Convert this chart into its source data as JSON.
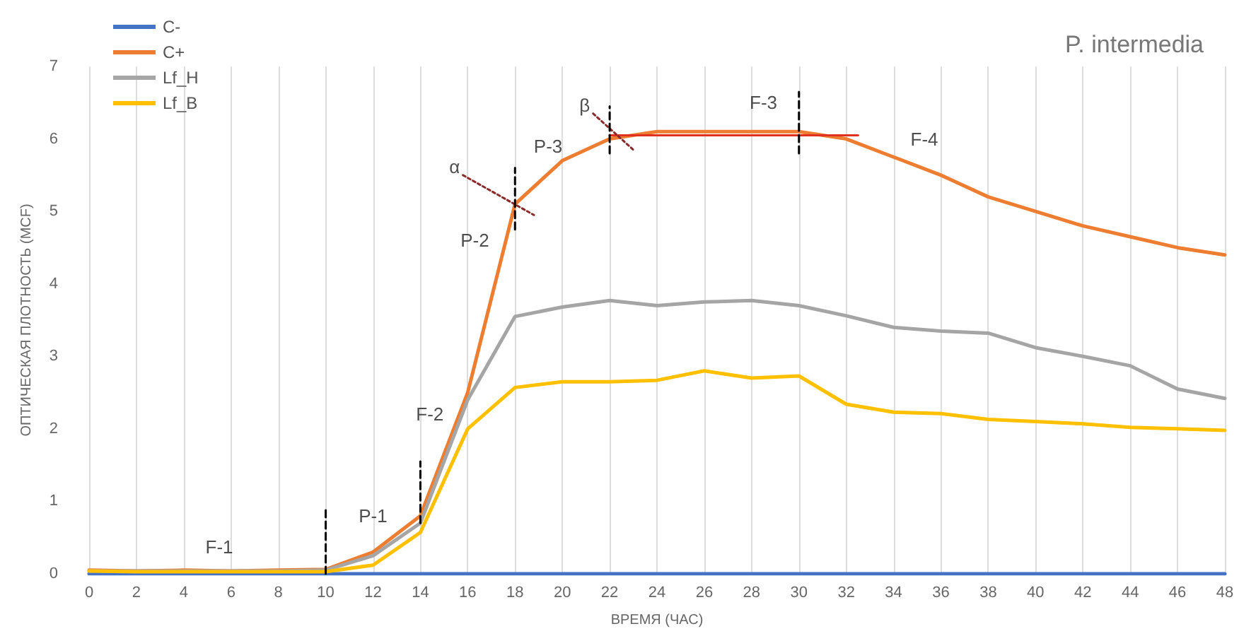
{
  "chart_data": {
    "type": "line",
    "title": "P. intermedia",
    "xlabel": "ВРЕМЯ (ЧАС)",
    "ylabel": "ОПТИЧЕСКАЯ ПЛОТНОСТЬ (MCF)",
    "x": [
      0,
      2,
      4,
      6,
      8,
      10,
      12,
      14,
      16,
      18,
      20,
      22,
      24,
      26,
      28,
      30,
      32,
      34,
      36,
      38,
      40,
      42,
      44,
      46,
      48
    ],
    "xlim": [
      0,
      48
    ],
    "xticks": [
      0,
      2,
      4,
      6,
      8,
      10,
      12,
      14,
      16,
      18,
      20,
      22,
      24,
      26,
      28,
      30,
      32,
      34,
      36,
      38,
      40,
      42,
      44,
      46,
      48
    ],
    "ylim": [
      0,
      7
    ],
    "yticks": [
      0,
      1,
      2,
      3,
      4,
      5,
      6,
      7
    ],
    "grid": "x",
    "legend": "top left",
    "marker": "none",
    "series": [
      {
        "name": "C-",
        "color": "#4472c4",
        "values": [
          0,
          0,
          0,
          0,
          0,
          0,
          0,
          0,
          0,
          0,
          0,
          0,
          0,
          0,
          0,
          0,
          0,
          0,
          0,
          0,
          0,
          0,
          0,
          0,
          0
        ]
      },
      {
        "name": "C+",
        "color": "#ed7d31",
        "values": [
          0.05,
          0.04,
          0.05,
          0.04,
          0.05,
          0.06,
          0.3,
          0.8,
          2.5,
          5.1,
          5.7,
          6.0,
          6.1,
          6.1,
          6.1,
          6.1,
          6.0,
          5.75,
          5.5,
          5.2,
          5.0,
          4.8,
          4.65,
          4.5,
          4.4
        ]
      },
      {
        "name": "Lf_H",
        "color": "#a5a5a5",
        "values": [
          0.04,
          0.04,
          0.04,
          0.04,
          0.04,
          0.05,
          0.25,
          0.7,
          2.4,
          3.55,
          3.68,
          3.77,
          3.7,
          3.75,
          3.77,
          3.7,
          3.56,
          3.4,
          3.35,
          3.32,
          3.12,
          3.0,
          2.87,
          2.55,
          2.42
        ]
      },
      {
        "name": "Lf_B",
        "color": "#ffc000",
        "values": [
          0.04,
          0.03,
          0.03,
          0.03,
          0.03,
          0.03,
          0.12,
          0.57,
          2.0,
          2.57,
          2.65,
          2.65,
          2.67,
          2.8,
          2.7,
          2.73,
          2.34,
          2.23,
          2.21,
          2.13,
          2.1,
          2.07,
          2.02,
          2.0,
          1.98
        ]
      },
      {
        "color": "#e03020",
        "x": [
          22,
          32.5
        ],
        "values": [
          6.05,
          6.05
        ],
        "line_style": "solid"
      },
      {
        "color": "#8b2a2a",
        "x": [
          15.8,
          18.8
        ],
        "values": [
          5.5,
          4.95
        ],
        "line_style": "dotted"
      },
      {
        "color": "#8b2a2a",
        "x": [
          21.3,
          23
        ],
        "values": [
          6.35,
          5.85
        ],
        "line_style": "dotted"
      },
      {
        "color": "#000000",
        "x": [
          10,
          10
        ],
        "values": [
          0,
          0.9
        ],
        "line_style": "dashed"
      },
      {
        "color": "#000000",
        "x": [
          14,
          14
        ],
        "values": [
          0.7,
          1.55
        ],
        "line_style": "dashed"
      },
      {
        "color": "#000000",
        "x": [
          18,
          18
        ],
        "values": [
          4.75,
          5.6
        ],
        "line_style": "dashed"
      },
      {
        "color": "#000000",
        "x": [
          22,
          22
        ],
        "values": [
          5.8,
          6.45
        ],
        "line_style": "dashed"
      },
      {
        "color": "#000000",
        "x": [
          30,
          30
        ],
        "values": [
          5.8,
          6.65
        ],
        "line_style": "dashed"
      }
    ],
    "annotations": [
      "F-1",
      "P-1",
      "F-2",
      "P-2",
      {
        "text": "α",
        "x": 15.8,
        "y": 5.5
      },
      "P-3",
      {
        "text": "β",
        "x": 21.3,
        "y": 6.35
      },
      "F-3",
      "F-4"
    ]
  }
}
